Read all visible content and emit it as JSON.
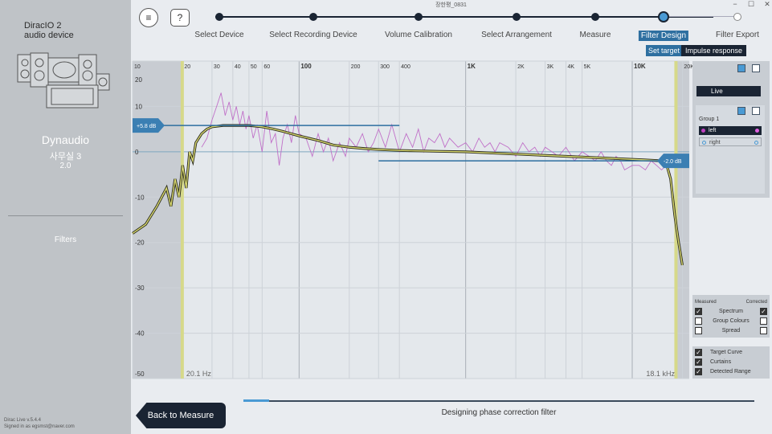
{
  "app": {
    "window_title": "장한평_0831",
    "version": "Dirac Live v.5.4.4",
    "signed_in": "Signed in as egsmst@naver.com"
  },
  "device": {
    "name_line1": "DiracIO 2",
    "name_line2": "audio device"
  },
  "sidebar": {
    "product": "Dynaudio",
    "room": "사무실 3",
    "version": "2.0",
    "filters_label": "Filters"
  },
  "toolbar": {
    "menu_icon": "hamburger-icon",
    "help_label": "?"
  },
  "steps": [
    {
      "label": "Select Device",
      "state": "done"
    },
    {
      "label": "Select Recording Device",
      "state": "done"
    },
    {
      "label": "Volume Calibration",
      "state": "done"
    },
    {
      "label": "Select Arrangement",
      "state": "done"
    },
    {
      "label": "Measure",
      "state": "done"
    },
    {
      "label": "Filter Design",
      "state": "active"
    },
    {
      "label": "Filter Export",
      "state": "future"
    }
  ],
  "view_tabs": {
    "set_target": "Set target",
    "impulse_response": "Impulse response"
  },
  "right_panel": {
    "live_label": "Live",
    "group_title": "Group 1",
    "channels": [
      {
        "name": "left",
        "color": "#c040c0"
      },
      {
        "name": "right",
        "color": "#4a9ad4"
      }
    ]
  },
  "options": {
    "measured_header": "Measured",
    "corrected_header": "Corrected",
    "rows": [
      {
        "label": "Spectrum",
        "measured": true,
        "corrected": true
      },
      {
        "label": "Group Colours",
        "measured": false,
        "corrected": false
      },
      {
        "label": "Spread",
        "measured": false,
        "corrected": false
      }
    ],
    "toggles": [
      {
        "label": "Target Curve",
        "checked": true
      },
      {
        "label": "Curtains",
        "checked": true
      },
      {
        "label": "Detected Range",
        "checked": true
      }
    ]
  },
  "bottom": {
    "back_label": "Back to Measure",
    "status_text": "Designing phase correction filter",
    "progress": 0.05
  },
  "chart_data": {
    "type": "line",
    "x_scale": "log",
    "xlim": [
      10,
      22000
    ],
    "ylim": [
      -50,
      20
    ],
    "x_ticks": [
      {
        "v": 10,
        "t": "10",
        "b": false
      },
      {
        "v": 20,
        "t": "20",
        "b": false
      },
      {
        "v": 30,
        "t": "30",
        "b": false
      },
      {
        "v": 40,
        "t": "40",
        "b": false
      },
      {
        "v": 50,
        "t": "50",
        "b": false
      },
      {
        "v": 60,
        "t": "60",
        "b": false
      },
      {
        "v": 100,
        "t": "100",
        "b": true
      },
      {
        "v": 200,
        "t": "200",
        "b": false
      },
      {
        "v": 300,
        "t": "300",
        "b": false
      },
      {
        "v": 400,
        "t": "400",
        "b": false
      },
      {
        "v": 1000,
        "t": "1K",
        "b": true
      },
      {
        "v": 2000,
        "t": "2K",
        "b": false
      },
      {
        "v": 3000,
        "t": "3K",
        "b": false
      },
      {
        "v": 4000,
        "t": "4K",
        "b": false
      },
      {
        "v": 5000,
        "t": "5K",
        "b": false
      },
      {
        "v": 10000,
        "t": "10K",
        "b": true
      },
      {
        "v": 20000,
        "t": "20K",
        "b": false
      }
    ],
    "y_ticks": [
      20,
      10,
      0,
      -10,
      -20,
      -30,
      -40,
      -50
    ],
    "curtain_low_hz": 20.1,
    "curtain_high_hz": 18100,
    "curtain_low_label": "20.1 Hz",
    "curtain_high_label": "18.1 kHz",
    "target_low_label": "+5.8 dB",
    "target_high_label": "-2.0 dB",
    "target_low": {
      "level_db": 5.8,
      "x_end_hz": 400
    },
    "target_high": {
      "level_db": -2.0,
      "x_start_hz": 300
    },
    "series": [
      {
        "role": "measured",
        "color": "#c070c8",
        "x": [
          26,
          28,
          30,
          32,
          34,
          36,
          38,
          40,
          42,
          44,
          46,
          48,
          50,
          53,
          56,
          60,
          64,
          68,
          72,
          76,
          80,
          85,
          90,
          95,
          100,
          110,
          120,
          130,
          140,
          150,
          160,
          175,
          190,
          200,
          220,
          240,
          260,
          280,
          300,
          330,
          360,
          400,
          440,
          480,
          520,
          560,
          600,
          650,
          700,
          750,
          800,
          900,
          1000,
          1100,
          1200,
          1300,
          1400,
          1500,
          1600,
          1800,
          2000,
          2200,
          2400,
          2600,
          2800,
          3000,
          3300,
          3600,
          4000,
          4500,
          5000,
          5500,
          6000,
          6500,
          7000,
          7500,
          8000,
          8500,
          9000,
          10000,
          11000,
          12000,
          13000,
          14000,
          15000,
          16000,
          17000
        ],
        "y": [
          1,
          3,
          7,
          10,
          13,
          8,
          11,
          7,
          10,
          6,
          9,
          5,
          8,
          3,
          6,
          0,
          9,
          2,
          4,
          -3,
          3,
          6,
          2,
          8,
          4,
          3,
          -1,
          4,
          0,
          3,
          -2,
          2,
          -1,
          3,
          1,
          4,
          0,
          2,
          5,
          1,
          6,
          0,
          4,
          1,
          5,
          0,
          3,
          2,
          4,
          1,
          3,
          1,
          2,
          0,
          3,
          1,
          2,
          0,
          2,
          1,
          -1,
          2,
          0,
          1,
          -1,
          1,
          0,
          -1,
          1,
          -2,
          0,
          -1,
          -2,
          0,
          -2,
          -3,
          -1,
          -2,
          -4,
          -3,
          -3,
          -4,
          -2,
          -3,
          -4,
          -3,
          -5
        ]
      },
      {
        "role": "corrected",
        "color": "#8a7a2a",
        "x": [
          10,
          12,
          14,
          16,
          17,
          18,
          19,
          20,
          21,
          22,
          23,
          24,
          26,
          28,
          30,
          35,
          40,
          50,
          60,
          70,
          80,
          100,
          130,
          160,
          200,
          250,
          300,
          400,
          500,
          700,
          1000,
          2000,
          4000,
          8000,
          12000,
          15000,
          16000,
          17000,
          18000,
          19000,
          20000
        ],
        "y": [
          -18,
          -16,
          -12,
          -8,
          -12,
          -6,
          -10,
          -3,
          -8,
          0,
          -2,
          2,
          4,
          5,
          5.5,
          5.8,
          5.8,
          5.8,
          5.5,
          5,
          4.5,
          3.5,
          2.5,
          1.5,
          1,
          0.7,
          0.5,
          0.3,
          0.2,
          0.1,
          0,
          -0.5,
          -1,
          -1.5,
          -1.8,
          -2,
          -2.5,
          -6,
          -14,
          -20,
          -25
        ]
      }
    ]
  }
}
